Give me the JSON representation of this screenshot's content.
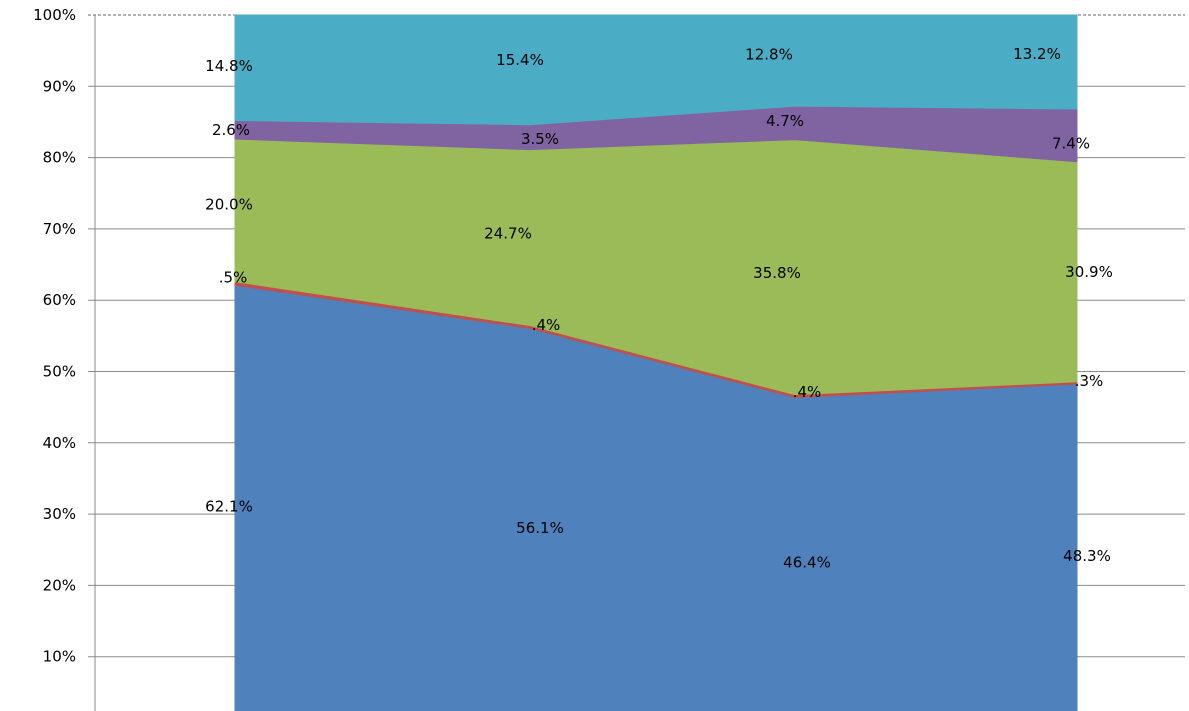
{
  "chart_data": {
    "type": "area",
    "stacked": "percent",
    "title": "",
    "xlabel": "",
    "ylabel": "",
    "ylim": [
      0,
      100
    ],
    "y_ticks": [
      "10%",
      "20%",
      "30%",
      "40%",
      "50%",
      "60%",
      "70%",
      "80%",
      "90%",
      "100%"
    ],
    "categories": [
      "",
      "",
      "",
      ""
    ],
    "grid": true,
    "legend": "none",
    "series": [
      {
        "values": [
          62.1,
          56.1,
          46.4,
          48.3
        ],
        "labels": [
          "62.1%",
          "56.1%",
          "46.4%",
          "48.3%"
        ],
        "color": "#4f81bd"
      },
      {
        "values": [
          0.5,
          0.4,
          0.4,
          0.3
        ],
        "labels": [
          ".5%",
          ".4%",
          ".4%",
          ".3%"
        ],
        "color": "#c0504d"
      },
      {
        "values": [
          20.0,
          24.7,
          35.8,
          30.9
        ],
        "labels": [
          "20.0%",
          "24.7%",
          "35.8%",
          "30.9%"
        ],
        "color": "#9bbb59"
      },
      {
        "values": [
          2.6,
          3.5,
          4.7,
          7.4
        ],
        "labels": [
          "2.6%",
          "3.5%",
          "4.7%",
          "7.4%"
        ],
        "color": "#8064a2"
      },
      {
        "values": [
          14.8,
          15.4,
          12.8,
          13.2
        ],
        "labels": [
          "14.8%",
          "15.4%",
          "12.8%",
          "13.2%"
        ],
        "color": "#4bacc6"
      }
    ]
  }
}
